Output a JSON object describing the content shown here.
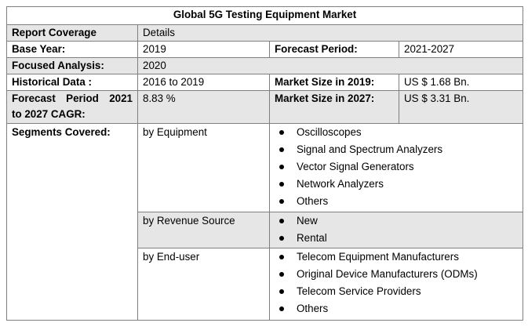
{
  "title": "Global 5G Testing Equipment Market",
  "rows": {
    "coverage": {
      "label": "Report Coverage",
      "value": "Details"
    },
    "base_year": {
      "label": "Base Year:",
      "value": "2019",
      "label2": "Forecast Period:",
      "value2": "2021-2027"
    },
    "focused": {
      "label": "Focused Analysis:",
      "value": "2020"
    },
    "historical": {
      "label": "Historical Data :",
      "value": "2016 to 2019",
      "label2": "Market Size in 2019:",
      "value2": "US $ 1.68 Bn."
    },
    "cagr": {
      "label_line1_a": "Forecast",
      "label_line1_b": "Period",
      "label_line1_c": "2021",
      "label_line2": "to 2027 CAGR:",
      "value": "8.83 %",
      "label2": "Market Size in 2027:",
      "value2": "US $ 3.31 Bn."
    }
  },
  "segments": {
    "label": "Segments Covered:",
    "groups": [
      {
        "name": "by Equipment",
        "items": [
          "Oscilloscopes",
          "Signal and Spectrum Analyzers",
          "Vector Signal Generators",
          "Network Analyzers",
          "Others"
        ]
      },
      {
        "name": "by Revenue Source",
        "items": [
          "New",
          "Rental"
        ]
      },
      {
        "name": "by End-user",
        "items": [
          "Telecom Equipment Manufacturers",
          "Original Device Manufacturers (ODMs)",
          "Telecom Service Providers",
          "Others"
        ]
      }
    ]
  }
}
